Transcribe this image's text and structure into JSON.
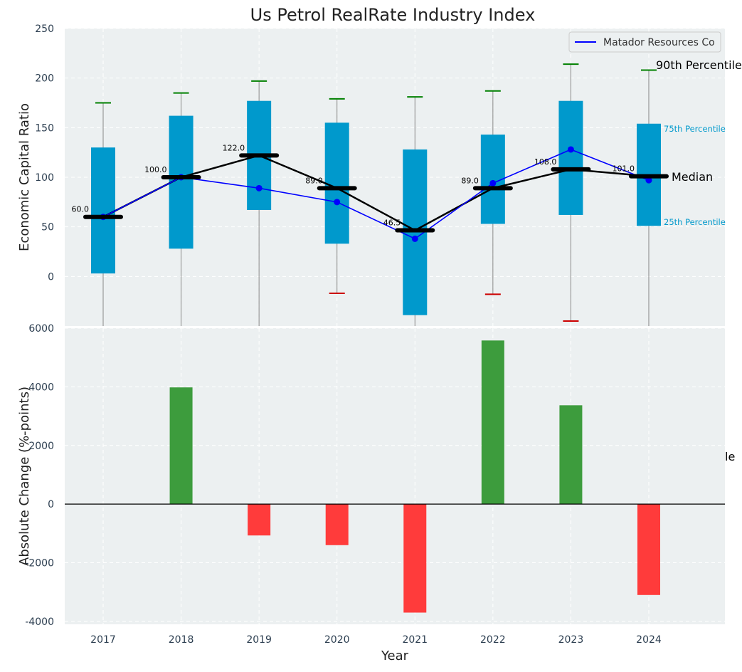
{
  "colors": {
    "panel_bg": "#ECF0F1",
    "box": "#0099CC",
    "whisker": "#888888",
    "median_line": "#000000",
    "company_line": "#0000FF",
    "cap_high": "#008000",
    "cap_low": "#CC0000",
    "bar_positive": "#3D9C3D",
    "bar_negative": "#FF3B3B",
    "axis_text": "#2C3E50"
  },
  "chart_data": [
    {
      "type": "box",
      "title": "Us Petrol RealRate Industry Index",
      "ylabel": "Economic Capital Ratio",
      "ylim": [
        -50,
        250
      ],
      "yticks": [
        0,
        50,
        100,
        150,
        200,
        250
      ],
      "grid": true,
      "categories": [
        "2017",
        "2018",
        "2019",
        "2020",
        "2021",
        "2022",
        "2023",
        "2024"
      ],
      "boxes": [
        {
          "year": "2017",
          "p10": -60,
          "p25": 3,
          "median": 60,
          "p75": 130,
          "p90": 175,
          "median_label": "60.0",
          "low_cap": false
        },
        {
          "year": "2018",
          "p10": -60,
          "p25": 28,
          "median": 100,
          "p75": 162,
          "p90": 185,
          "median_label": "100.0",
          "low_cap": false
        },
        {
          "year": "2019",
          "p10": -60,
          "p25": 67,
          "median": 122,
          "p75": 177,
          "p90": 197,
          "median_label": "122.0",
          "low_cap": false
        },
        {
          "year": "2020",
          "p10": -17,
          "p25": 33,
          "median": 89,
          "p75": 155,
          "p90": 179,
          "median_label": "89.0",
          "low_cap": true
        },
        {
          "year": "2021",
          "p10": -60,
          "p25": -39,
          "median": 46.5,
          "p75": 128,
          "p90": 181,
          "median_label": "46.5",
          "low_cap": false
        },
        {
          "year": "2022",
          "p10": -18,
          "p25": 53,
          "median": 89,
          "p75": 143,
          "p90": 187,
          "median_label": "89.0",
          "low_cap": true
        },
        {
          "year": "2023",
          "p10": -45,
          "p25": 62,
          "median": 108,
          "p75": 177,
          "p90": 214,
          "median_label": "108.0",
          "low_cap": true
        },
        {
          "year": "2024",
          "p10": -60,
          "p25": 51,
          "median": 101,
          "p75": 154,
          "p90": 208,
          "median_label": "101.0",
          "low_cap": false
        }
      ],
      "series": [
        {
          "name": "Matador Resources Co",
          "values": [
            60,
            100,
            89,
            75,
            38,
            94,
            128,
            97
          ]
        }
      ],
      "legend": {
        "label": "Matador Resources Co",
        "position": "top-right"
      },
      "annotations": {
        "p90": "90th Percentile",
        "p75": "75th Percentile",
        "median": "Median",
        "p25": "25th Percentile"
      }
    },
    {
      "type": "bar",
      "xlabel": "Year",
      "ylabel": "Absolute Change (%-points)",
      "ylim": [
        -4100,
        6000
      ],
      "yticks": [
        -4000,
        -2000,
        0,
        2000,
        4000,
        6000
      ],
      "grid": true,
      "categories": [
        "2017",
        "2018",
        "2019",
        "2020",
        "2021",
        "2022",
        "2023",
        "2024"
      ],
      "values": [
        0,
        3980,
        -1070,
        -1400,
        -3700,
        5580,
        3370,
        -3100
      ],
      "clipped_annotation": "le"
    }
  ]
}
